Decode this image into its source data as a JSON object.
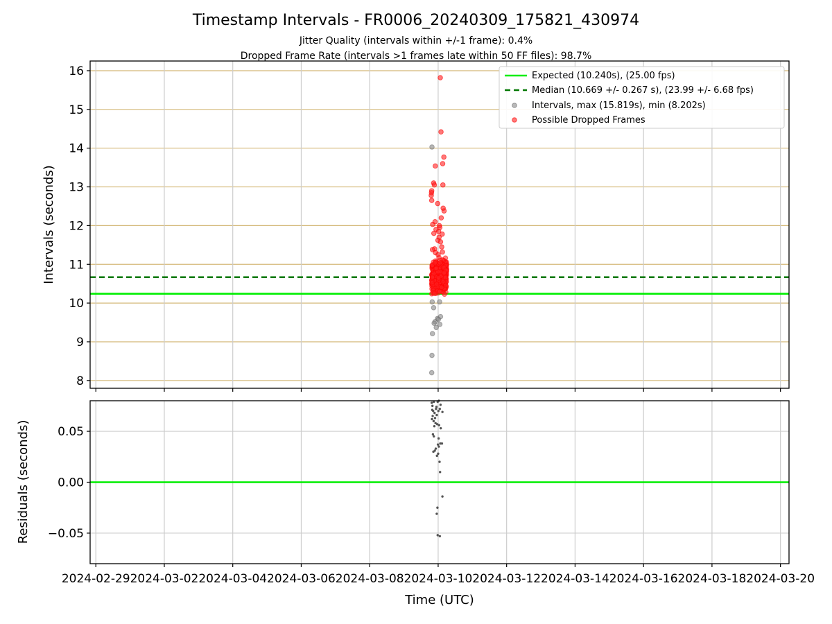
{
  "title": "Timestamp Intervals - FR0006_20240309_175821_430974",
  "subtitle_lines": [
    "Jitter Quality (intervals within +/-1 frame): 0.4%",
    "Dropped Frame Rate (intervals >1 frames late within 50 FF files): 98.7%"
  ],
  "colors": {
    "expected": "#00ee00",
    "median": "#007700",
    "intervals": "#888888",
    "dropped": "#ff2020",
    "residual": "#555555",
    "top_grid": "#d4b878",
    "bottom_grid": "#cccccc"
  },
  "chart_data": [
    {
      "type": "scatter",
      "panel": "intervals",
      "ylabel": "Intervals (seconds)",
      "ylim": [
        7.8,
        16.25
      ],
      "xlim": [
        "2024-02-28T20:00",
        "2024-03-20T06:00"
      ],
      "yticks": [
        8,
        9,
        10,
        11,
        12,
        13,
        14,
        15,
        16
      ],
      "grid": true,
      "legend_position": "top-right",
      "reference_lines": [
        {
          "name": "Expected (10.240s), (25.00 fps)",
          "y": 10.24,
          "style": "solid"
        },
        {
          "name": "Median (10.669 +/- 0.267 s), (23.99 +/- 6.68 fps)",
          "y": 10.669,
          "style": "dashed"
        }
      ],
      "series": [
        {
          "name": "Intervals, max (15.819s), min (8.202s)",
          "points": [
            [
              "2024-03-09T19:30",
              8.202
            ],
            [
              "2024-03-09T19:40",
              8.65
            ],
            [
              "2024-03-09T20:00",
              9.21
            ],
            [
              "2024-03-09T21:50",
              9.52
            ],
            [
              "2024-03-09T21:10",
              9.48
            ],
            [
              "2024-03-09T23:30",
              9.6
            ],
            [
              "2024-03-10T01:10",
              9.45
            ],
            [
              "2024-03-10T01:40",
              9.65
            ],
            [
              "2024-03-10T00:10",
              9.58
            ],
            [
              "2024-03-09T22:40",
              9.37
            ],
            [
              "2024-03-09T20:50",
              9.88
            ],
            [
              "2024-03-09T19:50",
              10.03
            ],
            [
              "2024-03-10T01:00",
              10.03
            ],
            [
              "2024-03-09T19:40",
              14.03
            ]
          ]
        },
        {
          "name": "Possible Dropped Frames",
          "points": [
            [
              "2024-03-10T01:30",
              15.819
            ],
            [
              "2024-03-10T02:00",
              14.42
            ],
            [
              "2024-03-10T04:00",
              13.77
            ],
            [
              "2024-03-10T03:10",
              13.6
            ],
            [
              "2024-03-09T22:00",
              13.54
            ],
            [
              "2024-03-10T03:20",
              13.05
            ],
            [
              "2024-03-09T20:50",
              13.1
            ],
            [
              "2024-03-09T21:20",
              13.05
            ],
            [
              "2024-03-09T19:30",
              12.9
            ],
            [
              "2024-03-09T19:20",
              12.85
            ],
            [
              "2024-03-09T19:10",
              12.78
            ],
            [
              "2024-03-09T19:30",
              12.65
            ],
            [
              "2024-03-09T23:40",
              12.57
            ],
            [
              "2024-03-10T03:30",
              12.45
            ],
            [
              "2024-03-10T04:10",
              12.38
            ],
            [
              "2024-03-10T02:10",
              12.2
            ],
            [
              "2024-03-09T21:50",
              12.1
            ],
            [
              "2024-03-09T20:10",
              12.03
            ],
            [
              "2024-03-10T00:50",
              12.0
            ],
            [
              "2024-03-10T01:10",
              11.95
            ],
            [
              "2024-03-09T22:30",
              11.9
            ],
            [
              "2024-03-10T00:20",
              11.85
            ],
            [
              "2024-03-09T21:00",
              11.8
            ],
            [
              "2024-03-10T02:50",
              11.78
            ],
            [
              "2024-03-10T00:40",
              11.7
            ],
            [
              "2024-03-09T23:50",
              11.62
            ],
            [
              "2024-03-10T01:40",
              11.58
            ],
            [
              "2024-03-10T02:30",
              11.45
            ],
            [
              "2024-03-09T21:30",
              11.4
            ],
            [
              "2024-03-09T20:00",
              11.38
            ],
            [
              "2024-03-10T03:00",
              11.32
            ],
            [
              "2024-03-09T22:10",
              11.3
            ],
            [
              "2024-03-10T00:00",
              11.25
            ]
          ],
          "dense_cluster": {
            "x_range": [
              "2024-03-09T19:30",
              "2024-03-10T06:00"
            ],
            "y_range": [
              10.2,
              11.2
            ]
          }
        }
      ]
    },
    {
      "type": "scatter",
      "panel": "residuals",
      "xlabel": "Time (UTC)",
      "ylabel": "Residuals (seconds)",
      "ylim": [
        -0.08,
        0.08
      ],
      "yticks": [
        -0.05,
        0.0,
        0.05
      ],
      "ytick_labels": [
        "−0.05",
        "0.00",
        "0.05"
      ],
      "xticks": [
        "2024-02-29",
        "2024-03-02",
        "2024-03-04",
        "2024-03-06",
        "2024-03-08",
        "2024-03-10",
        "2024-03-12",
        "2024-03-14",
        "2024-03-16",
        "2024-03-18",
        "2024-03-20"
      ],
      "grid": true,
      "reference_lines": [
        {
          "y": 0.0,
          "style": "solid"
        }
      ],
      "points": [
        [
          "2024-03-09T19:30",
          0.078
        ],
        [
          "2024-03-09T20:00",
          0.075
        ],
        [
          "2024-03-09T21:00",
          0.079
        ],
        [
          "2024-03-09T22:30",
          0.072
        ],
        [
          "2024-03-09T23:40",
          0.079
        ],
        [
          "2024-03-10T00:30",
          0.08
        ],
        [
          "2024-03-10T01:40",
          0.076
        ],
        [
          "2024-03-09T19:50",
          0.071
        ],
        [
          "2024-03-09T20:30",
          0.07
        ],
        [
          "2024-03-09T21:30",
          0.068
        ],
        [
          "2024-03-09T22:50",
          0.074
        ],
        [
          "2024-03-10T00:10",
          0.07
        ],
        [
          "2024-03-10T01:10",
          0.072
        ],
        [
          "2024-03-10T03:00",
          0.069
        ],
        [
          "2024-03-09T20:10",
          0.065
        ],
        [
          "2024-03-09T21:50",
          0.063
        ],
        [
          "2024-03-09T23:00",
          0.066
        ],
        [
          "2024-03-09T19:40",
          0.062
        ],
        [
          "2024-03-09T20:50",
          0.06
        ],
        [
          "2024-03-09T22:10",
          0.058
        ],
        [
          "2024-03-10T00:40",
          0.056
        ],
        [
          "2024-03-09T21:20",
          0.055
        ],
        [
          "2024-03-10T01:50",
          0.053
        ],
        [
          "2024-03-09T23:20",
          0.057
        ],
        [
          "2024-03-09T20:20",
          0.047
        ],
        [
          "2024-03-09T21:00",
          0.045
        ],
        [
          "2024-03-10T00:20",
          0.043
        ],
        [
          "2024-03-10T01:30",
          0.038
        ],
        [
          "2024-03-10T02:40",
          0.038
        ],
        [
          "2024-03-09T23:50",
          0.037
        ],
        [
          "2024-03-10T00:30",
          0.035
        ],
        [
          "2024-03-09T22:20",
          0.033
        ],
        [
          "2024-03-09T20:40",
          0.03
        ],
        [
          "2024-03-09T21:40",
          0.031
        ],
        [
          "2024-03-10T00:00",
          0.028
        ],
        [
          "2024-03-09T23:10",
          0.026
        ],
        [
          "2024-03-10T01:00",
          0.02
        ],
        [
          "2024-03-10T01:20",
          0.01
        ],
        [
          "2024-03-10T03:00",
          -0.014
        ],
        [
          "2024-03-09T23:30",
          -0.025
        ],
        [
          "2024-03-09T23:00",
          -0.031
        ],
        [
          "2024-03-09T23:40",
          -0.052
        ],
        [
          "2024-03-10T01:10",
          -0.053
        ]
      ]
    }
  ]
}
